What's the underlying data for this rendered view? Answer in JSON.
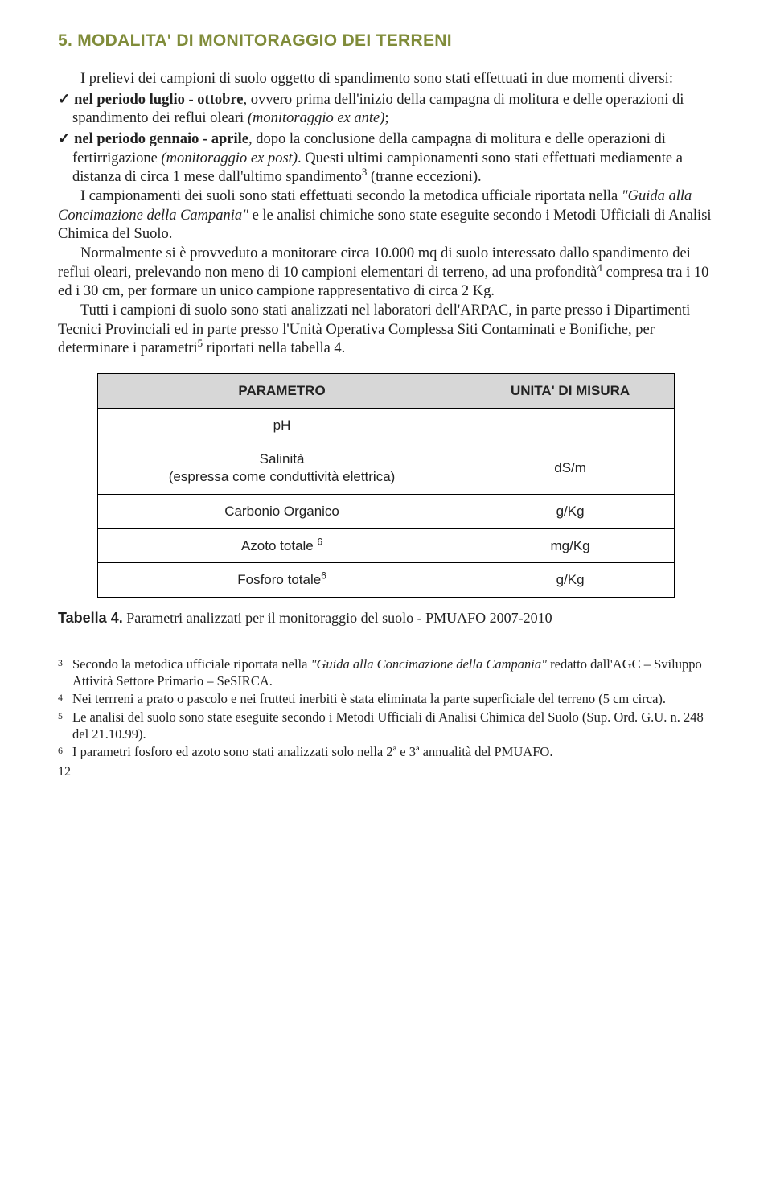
{
  "title": "5. MODALITA' DI MONITORAGGIO DEI TERRENI",
  "intro": "I prelievi dei campioni di suolo oggetto di spandimento sono stati effettuati in due momenti diversi:",
  "bullets": [
    {
      "tick": "✓",
      "lead": "nel periodo luglio - ottobre",
      "rest1": ", ovvero prima dell'inizio della campagna di molitura e delle operazioni di spandimento dei reflui oleari ",
      "paren": "(monitoraggio ex ante)",
      "rest2": ";"
    },
    {
      "tick": "✓",
      "lead": "nel periodo gennaio - aprile",
      "rest1": ", dopo la conclusione della campagna di molitura e delle operazioni di fertirrigazione ",
      "paren": "(monitoraggio ex post)",
      "rest2": ". Questi ultimi campionamenti sono stati effettuati mediamente a distanza di circa 1 mese dall'ultimo spandimento",
      "sup": "3",
      "rest3": " (tranne eccezioni)."
    }
  ],
  "paras": {
    "p1a": "I campionamenti dei suoli sono stati effettuati secondo la metodica ufficiale riportata nella ",
    "p1i": "\"Guida alla Concimazione della Campania\"",
    "p1b": " e le analisi chimiche sono state eseguite secondo i Metodi Ufficiali di Analisi Chimica del Suolo.",
    "p2a": "Normalmente si è provveduto a monitorare circa 10.000 mq di suolo interessato dallo spandimento dei reflui oleari, prelevando non meno di 10 campioni elementari di terreno, ad una profondità",
    "p2sup": "4",
    "p2b": " compresa tra i 10 ed i 30 cm, per formare un unico campione rappresentativo di circa 2 Kg.",
    "p3a": "Tutti i campioni di suolo sono stati analizzati nel laboratori dell'ARPAC, in parte presso i Dipartimenti Tecnici Provinciali ed in parte presso l'Unità Operativa Complessa Siti Contaminati e Bonifiche, per determinare i parametri",
    "p3sup": "5",
    "p3b": " riportati nella tabella 4."
  },
  "table": {
    "headers": [
      "PARAMETRO",
      "UNITA' DI MISURA"
    ],
    "rows": [
      {
        "param": "pH",
        "unit": ""
      },
      {
        "param": "Salinità\n(espressa come conduttività elettrica)",
        "unit": "dS/m"
      },
      {
        "param": "Carbonio Organico",
        "unit": "g/Kg"
      },
      {
        "param": "Azoto totale ",
        "sup": "6",
        "unit": "mg/Kg"
      },
      {
        "param": "Fosforo totale",
        "sup": "6",
        "unit": "g/Kg"
      }
    ]
  },
  "caption": {
    "lead": "Tabella 4.",
    "text": " Parametri analizzati per il monitoraggio del suolo - PMUAFO 2007-2010"
  },
  "footnotes": [
    {
      "num": "3",
      "a": "Secondo la metodica ufficiale riportata nella ",
      "i": "\"Guida alla Concimazione della Campania\"",
      "b": " redatto dall'AGC – Sviluppo Attività Settore Primario – SeSIRCA."
    },
    {
      "num": "4",
      "a": "Nei terrreni a prato o pascolo e nei frutteti inerbiti è stata eliminata la parte superficiale del terreno (5 cm circa)."
    },
    {
      "num": "5",
      "a": "Le analisi del suolo sono state eseguite secondo i Metodi Ufficiali di Analisi Chimica del Suolo (Sup. Ord. G.U. n. 248 del 21.10.99)."
    },
    {
      "num": "6",
      "a": "I parametri fosforo ed azoto sono stati analizzati solo nella 2ª e 3ª annualità del PMUAFO."
    }
  ],
  "page": "12"
}
